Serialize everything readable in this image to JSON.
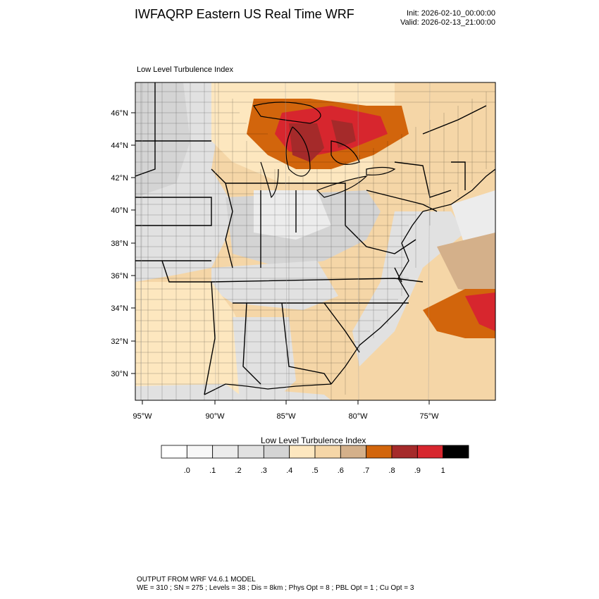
{
  "header": {
    "title": "IWFAQRP Eastern US Real Time WRF",
    "init": "Init: 2026-02-10_00:00:00",
    "valid": "Valid: 2026-02-13_21:00:00"
  },
  "map": {
    "field_label": "Low Level Turbulence Index",
    "lat_labels": [
      "46°N",
      "44°N",
      "42°N",
      "40°N",
      "38°N",
      "36°N",
      "34°N",
      "32°N",
      "30°N"
    ],
    "lon_labels": [
      "95°W",
      "90°W",
      "85°W",
      "80°W",
      "75°W"
    ]
  },
  "colorbar": {
    "title": "Low Level Turbulence Index",
    "colors": [
      "#ffffff",
      "#f7f7f7",
      "#ececec",
      "#e1e1e1",
      "#d4d4d4",
      "#fde7bf",
      "#f5d6a7",
      "#d4b08a",
      "#d2650c",
      "#a52a2a",
      "#d7262e",
      "#000000"
    ],
    "tick_labels": [
      ".0",
      ".1",
      ".2",
      ".3",
      ".4",
      ".5",
      ".6",
      ".7",
      ".8",
      ".9",
      "1"
    ]
  },
  "footer": {
    "line1": "OUTPUT FROM WRF V4.6.1 MODEL",
    "line2": "WE = 310 ; SN = 275 ; Levels = 38 ; Dis = 8km ; Phys Opt = 8 ; PBL Opt = 1 ; Cu Opt = 3"
  }
}
